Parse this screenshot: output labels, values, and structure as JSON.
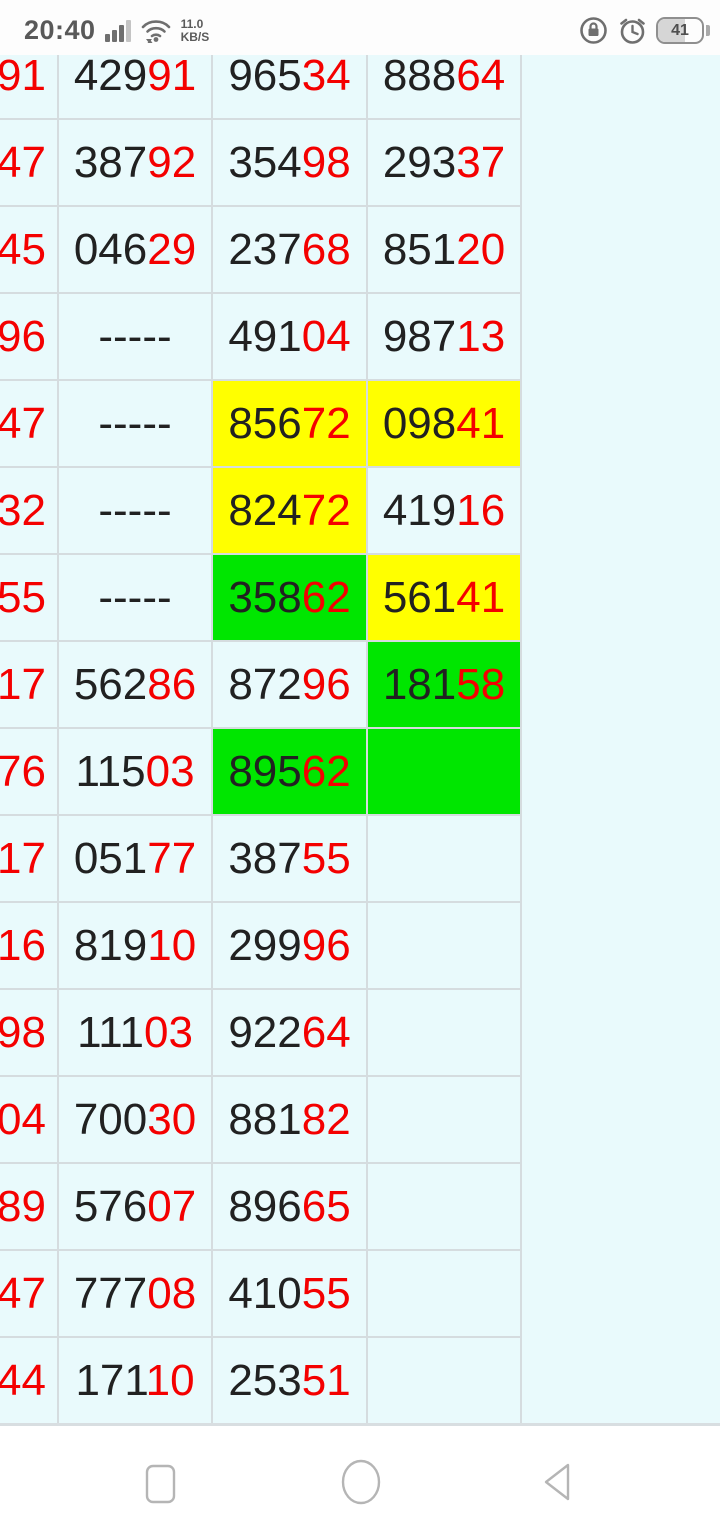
{
  "status_bar": {
    "time": "20:40",
    "speed_value": "11.0",
    "speed_unit": "KB/S",
    "battery_level": "41",
    "icons": [
      "signal-bars-icon",
      "wifi-icon",
      "rotation-lock-icon",
      "alarm-clock-icon",
      "battery-icon"
    ]
  },
  "colors": {
    "digit_black": "#212121",
    "digit_red": "#f40000",
    "highlight_yellow": "#ffff00",
    "highlight_green": "#00e600",
    "table_background": "#e9fafc",
    "grid_line": "#d5dcdf"
  },
  "table": {
    "rows": [
      {
        "c1": "91",
        "c2": {
          "b": "429",
          "r": "91",
          "bg": ""
        },
        "c3": {
          "b": "965",
          "r": "34",
          "bg": ""
        },
        "c4": {
          "b": "888",
          "r": "64",
          "bg": ""
        }
      },
      {
        "c1": "47",
        "c2": {
          "b": "387",
          "r": "92",
          "bg": ""
        },
        "c3": {
          "b": "354",
          "r": "98",
          "bg": ""
        },
        "c4": {
          "b": "293",
          "r": "37",
          "bg": ""
        }
      },
      {
        "c1": "45",
        "c2": {
          "b": "046",
          "r": "29",
          "bg": ""
        },
        "c3": {
          "b": "237",
          "r": "68",
          "bg": ""
        },
        "c4": {
          "b": "851",
          "r": "20",
          "bg": ""
        }
      },
      {
        "c1": "96",
        "c2": {
          "b": "-----",
          "r": "",
          "bg": ""
        },
        "c3": {
          "b": "491",
          "r": "04",
          "bg": ""
        },
        "c4": {
          "b": "987",
          "r": "13",
          "bg": ""
        }
      },
      {
        "c1": "47",
        "c2": {
          "b": "-----",
          "r": "",
          "bg": ""
        },
        "c3": {
          "b": "856",
          "r": "72",
          "bg": "yellow"
        },
        "c4": {
          "b": "098",
          "r": "41",
          "bg": "yellow"
        }
      },
      {
        "c1": "32",
        "c2": {
          "b": "-----",
          "r": "",
          "bg": ""
        },
        "c3": {
          "b": "824",
          "r": "72",
          "bg": "yellow"
        },
        "c4": {
          "b": "419",
          "r": "16",
          "bg": ""
        }
      },
      {
        "c1": "55",
        "c2": {
          "b": "-----",
          "r": "",
          "bg": ""
        },
        "c3": {
          "b": "358",
          "r": "62",
          "bg": "green"
        },
        "c4": {
          "b": "561",
          "r": "41",
          "bg": "yellow"
        }
      },
      {
        "c1": "17",
        "c2": {
          "b": "562",
          "r": "86",
          "bg": ""
        },
        "c3": {
          "b": "872",
          "r": "96",
          "bg": ""
        },
        "c4": {
          "b": "181",
          "r": "58",
          "bg": "green"
        }
      },
      {
        "c1": "76",
        "c2": {
          "b": "115",
          "r": "03",
          "bg": ""
        },
        "c3": {
          "b": "895",
          "r": "62",
          "bg": "green"
        },
        "c4": {
          "b": "",
          "r": "",
          "bg": "green"
        }
      },
      {
        "c1": "17",
        "c2": {
          "b": "051",
          "r": "77",
          "bg": ""
        },
        "c3": {
          "b": "387",
          "r": "55",
          "bg": ""
        },
        "c4": {
          "b": "",
          "r": "",
          "bg": ""
        }
      },
      {
        "c1": "16",
        "c2": {
          "b": "819",
          "r": "10",
          "bg": ""
        },
        "c3": {
          "b": "299",
          "r": "96",
          "bg": ""
        },
        "c4": {
          "b": "",
          "r": "",
          "bg": ""
        }
      },
      {
        "c1": "98",
        "c2": {
          "b": "111",
          "r": "03",
          "bg": ""
        },
        "c3": {
          "b": "922",
          "r": "64",
          "bg": ""
        },
        "c4": {
          "b": "",
          "r": "",
          "bg": ""
        }
      },
      {
        "c1": "04",
        "c2": {
          "b": "700",
          "r": "30",
          "bg": ""
        },
        "c3": {
          "b": "881",
          "r": "82",
          "bg": ""
        },
        "c4": {
          "b": "",
          "r": "",
          "bg": ""
        }
      },
      {
        "c1": "89",
        "c2": {
          "b": "576",
          "r": "07",
          "bg": ""
        },
        "c3": {
          "b": "896",
          "r": "65",
          "bg": ""
        },
        "c4": {
          "b": "",
          "r": "",
          "bg": ""
        }
      },
      {
        "c1": "47",
        "c2": {
          "b": "777",
          "r": "08",
          "bg": ""
        },
        "c3": {
          "b": "410",
          "r": "55",
          "bg": ""
        },
        "c4": {
          "b": "",
          "r": "",
          "bg": ""
        }
      },
      {
        "c1": "44",
        "c2": {
          "b": "171",
          "r": "10",
          "bg": ""
        },
        "c3": {
          "b": "253",
          "r": "51",
          "bg": ""
        },
        "c4": {
          "b": "",
          "r": "",
          "bg": ""
        }
      }
    ]
  },
  "nav_bar": {
    "icons": [
      "recents-square-icon",
      "home-circle-icon",
      "back-triangle-icon"
    ]
  }
}
